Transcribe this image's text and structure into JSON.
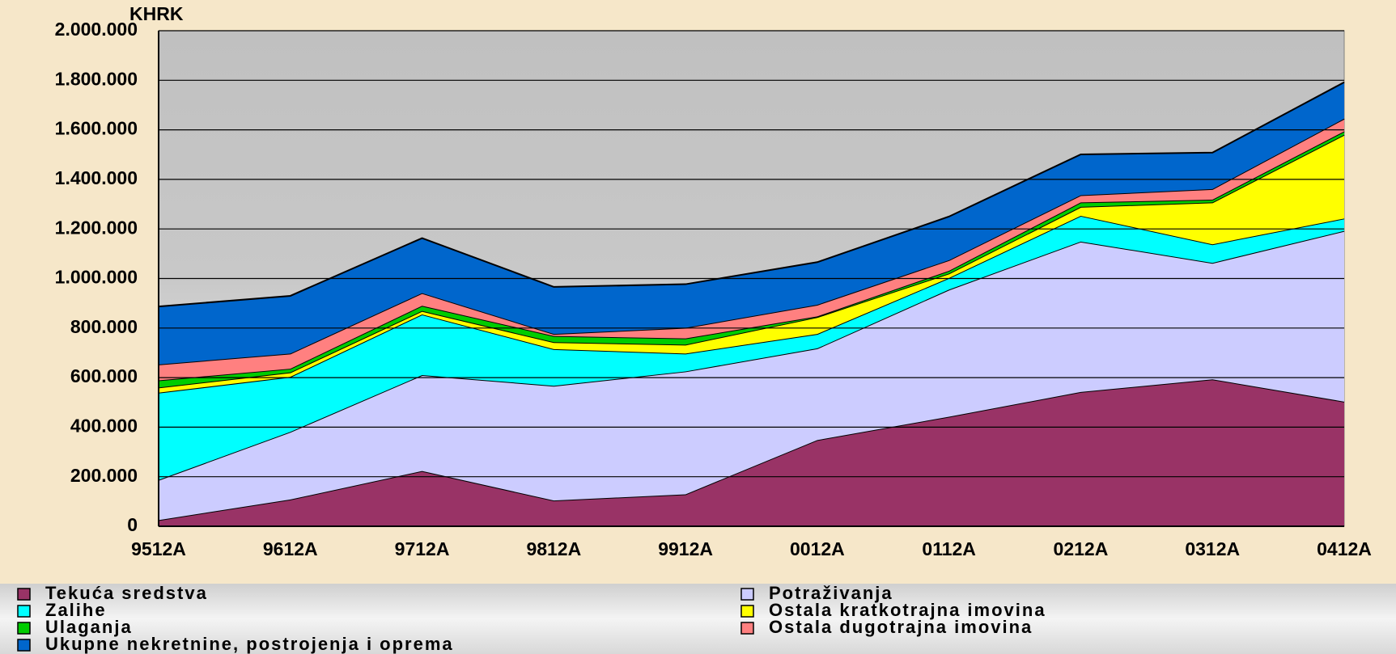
{
  "chart_data": {
    "type": "stacked_area",
    "y_label": "KHRK",
    "categories": [
      "9512A",
      "9612A",
      "9712A",
      "9812A",
      "9912A",
      "0012A",
      "0112A",
      "0212A",
      "0312A",
      "0412A"
    ],
    "series": [
      {
        "name": "Tekuća sredstva",
        "color": "#993366",
        "values": [
          25000,
          108000,
          223000,
          104000,
          129000,
          348000,
          442000,
          542000,
          593000,
          503000
        ]
      },
      {
        "name": "Potraživanja",
        "color": "#ccccff",
        "values": [
          162000,
          273000,
          387000,
          463000,
          496000,
          370000,
          513000,
          607000,
          470000,
          689000
        ]
      },
      {
        "name": "Zalihe",
        "color": "#00ffff",
        "values": [
          352000,
          222000,
          245000,
          148000,
          72000,
          58000,
          47000,
          104000,
          75000,
          50000
        ]
      },
      {
        "name": "Ostala kratkotrajna imovina",
        "color": "#ffff00",
        "values": [
          21000,
          18000,
          14000,
          28000,
          36000,
          68000,
          18000,
          36000,
          169000,
          338000
        ]
      },
      {
        "name": "Ulaganja",
        "color": "#00cc00",
        "values": [
          29000,
          15000,
          21000,
          25000,
          25000,
          3000,
          11000,
          18000,
          11000,
          14000
        ]
      },
      {
        "name": "Ostala dugotrajna imovina",
        "color": "#ff8080",
        "values": [
          64000,
          61000,
          51000,
          8000,
          43000,
          47000,
          43000,
          29000,
          43000,
          51000
        ]
      },
      {
        "name": "Ukupne nekretnine, postrojenja i oprema",
        "color": "#0066cc",
        "values": [
          234000,
          233000,
          222000,
          190000,
          176000,
          172000,
          176000,
          165000,
          147000,
          147000
        ]
      }
    ],
    "ylim": [
      0,
      2000000
    ],
    "yticks": [
      0,
      {
        "value": 200000,
        "label": "200.000"
      },
      {
        "value": 400000,
        "label": "400.000"
      },
      {
        "value": 600000,
        "label": "600.000"
      },
      {
        "value": 800000,
        "label": "800.000"
      },
      {
        "value": 1000000,
        "label": "1.000.000"
      },
      {
        "value": 1200000,
        "label": "1.200.000"
      },
      {
        "value": 1400000,
        "label": "1.400.000"
      },
      {
        "value": 1600000,
        "label": "1.600.000"
      },
      {
        "value": 1800000,
        "label": "1.800.000"
      },
      {
        "value": 2000000,
        "label": "2.000.000"
      }
    ],
    "grid": true
  }
}
